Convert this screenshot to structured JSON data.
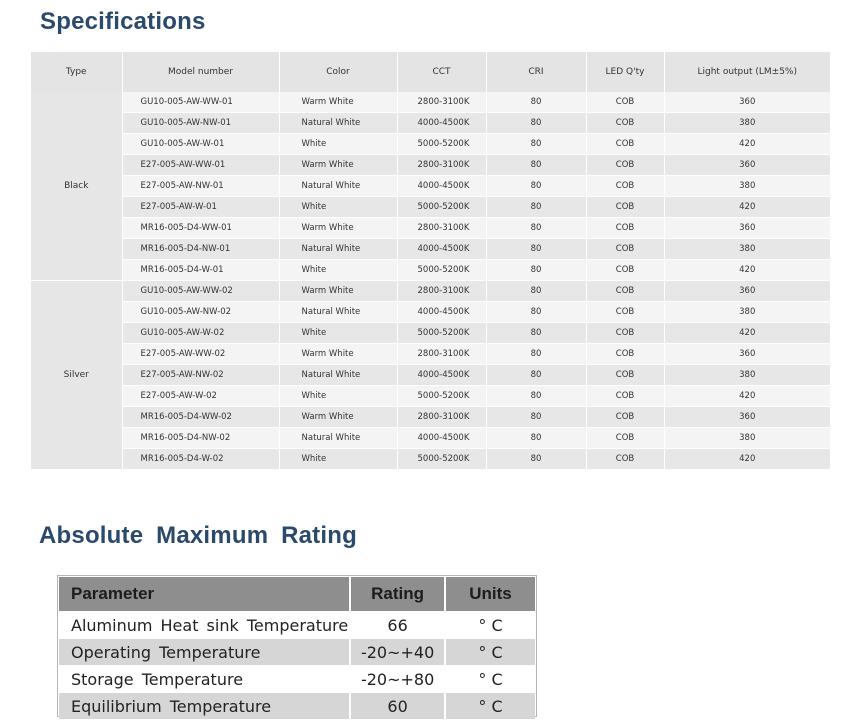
{
  "specifications": {
    "title": "Specifications",
    "headers": [
      "Type",
      "Model number",
      "Color",
      "CCT",
      "CRI",
      "LED Q'ty",
      "Light output (LM±5%)"
    ],
    "groups": [
      {
        "type": "Black",
        "rows": [
          {
            "model": "GU10-005-AW-WW-01",
            "color": "Warm White",
            "cct": "2800-3100K",
            "cri": "80",
            "led": "COB",
            "output": "360"
          },
          {
            "model": "GU10-005-AW-NW-01",
            "color": "Natural White",
            "cct": "4000-4500K",
            "cri": "80",
            "led": "COB",
            "output": "380"
          },
          {
            "model": "GU10-005-AW-W-01",
            "color": "White",
            "cct": "5000-5200K",
            "cri": "80",
            "led": "COB",
            "output": "420"
          },
          {
            "model": "E27-005-AW-WW-01",
            "color": "Warm White",
            "cct": "2800-3100K",
            "cri": "80",
            "led": "COB",
            "output": "360"
          },
          {
            "model": "E27-005-AW-NW-01",
            "color": "Natural White",
            "cct": "4000-4500K",
            "cri": "80",
            "led": "COB",
            "output": "380"
          },
          {
            "model": "E27-005-AW-W-01",
            "color": "White",
            "cct": "5000-5200K",
            "cri": "80",
            "led": "COB",
            "output": "420"
          },
          {
            "model": "MR16-005-D4-WW-01",
            "color": "Warm White",
            "cct": "2800-3100K",
            "cri": "80",
            "led": "COB",
            "output": "360"
          },
          {
            "model": "MR16-005-D4-NW-01",
            "color": "Natural White",
            "cct": "4000-4500K",
            "cri": "80",
            "led": "COB",
            "output": "380"
          },
          {
            "model": "MR16-005-D4-W-01",
            "color": "White",
            "cct": "5000-5200K",
            "cri": "80",
            "led": "COB",
            "output": "420"
          }
        ]
      },
      {
        "type": "Silver",
        "rows": [
          {
            "model": "GU10-005-AW-WW-02",
            "color": "Warm White",
            "cct": "2800-3100K",
            "cri": "80",
            "led": "COB",
            "output": "360"
          },
          {
            "model": "GU10-005-AW-NW-02",
            "color": "Natural White",
            "cct": "4000-4500K",
            "cri": "80",
            "led": "COB",
            "output": "380"
          },
          {
            "model": "GU10-005-AW-W-02",
            "color": "White",
            "cct": "5000-5200K",
            "cri": "80",
            "led": "COB",
            "output": "420"
          },
          {
            "model": "E27-005-AW-WW-02",
            "color": "Warm White",
            "cct": "2800-3100K",
            "cri": "80",
            "led": "COB",
            "output": "360"
          },
          {
            "model": "E27-005-AW-NW-02",
            "color": "Natural White",
            "cct": "4000-4500K",
            "cri": "80",
            "led": "COB",
            "output": "380"
          },
          {
            "model": "E27-005-AW-W-02",
            "color": "White",
            "cct": "5000-5200K",
            "cri": "80",
            "led": "COB",
            "output": "420"
          },
          {
            "model": "MR16-005-D4-WW-02",
            "color": "Warm White",
            "cct": "2800-3100K",
            "cri": "80",
            "led": "COB",
            "output": "360"
          },
          {
            "model": "MR16-005-D4-NW-02",
            "color": "Natural White",
            "cct": "4000-4500K",
            "cri": "80",
            "led": "COB",
            "output": "380"
          },
          {
            "model": "MR16-005-D4-W-02",
            "color": "White",
            "cct": "5000-5200K",
            "cri": "80",
            "led": "COB",
            "output": "420"
          }
        ]
      }
    ]
  },
  "absolute_maximum_rating": {
    "title": "Absolute Maximum Rating",
    "headers": [
      "Parameter",
      "Rating",
      "Units"
    ],
    "rows": [
      {
        "parameter": "Aluminum Heat sink Temperature",
        "rating": "66",
        "units": "° C"
      },
      {
        "parameter": "Operating Temperature",
        "rating": "-20~+40",
        "units": "° C"
      },
      {
        "parameter": "Storage Temperature",
        "rating": "-20~+80",
        "units": "° C"
      },
      {
        "parameter": "Equilibrium Temperature",
        "rating": "60",
        "units": "° C"
      }
    ]
  },
  "colors": {
    "heading": "#2b4a6b",
    "amr_header": "#8e8e8e"
  }
}
